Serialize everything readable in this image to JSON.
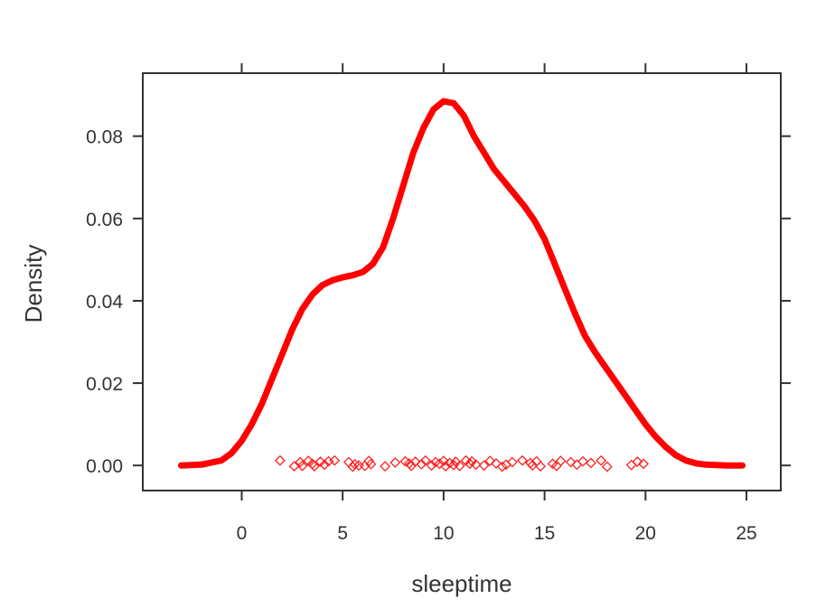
{
  "chart_data": {
    "type": "line",
    "xlabel": "sleeptime",
    "ylabel": "Density",
    "xlim": [
      -4.9,
      26.7
    ],
    "ylim": [
      -0.0061,
      0.0953
    ],
    "xticks": [
      0,
      5,
      10,
      15,
      20,
      25
    ],
    "xtick_labels": [
      "0",
      "5",
      "10",
      "15",
      "20",
      "25"
    ],
    "yticks": [
      0.0,
      0.02,
      0.04,
      0.06,
      0.08
    ],
    "ytick_labels": [
      "0.00",
      "0.02",
      "0.04",
      "0.06",
      "0.08"
    ],
    "colors": {
      "line": "#ff0000",
      "points": "#ff2020",
      "frame": "#333333"
    },
    "series": [
      {
        "style": "density-line",
        "x": [
          -3.0,
          -2.0,
          -1.0,
          -0.5,
          0.0,
          0.5,
          1.0,
          1.5,
          2.0,
          2.5,
          3.0,
          3.5,
          4.0,
          4.5,
          5.0,
          5.5,
          6.0,
          6.5,
          7.0,
          7.5,
          8.0,
          8.5,
          9.0,
          9.5,
          10.0,
          10.5,
          11.0,
          11.5,
          12.0,
          12.5,
          13.0,
          13.5,
          14.0,
          14.5,
          15.0,
          15.5,
          16.0,
          16.5,
          17.0,
          17.5,
          18.0,
          18.5,
          19.0,
          19.5,
          20.0,
          20.5,
          21.0,
          21.5,
          22.0,
          22.5,
          23.0,
          24.0,
          24.8
        ],
        "y": [
          0.0,
          0.0002,
          0.0012,
          0.003,
          0.006,
          0.01,
          0.015,
          0.021,
          0.027,
          0.033,
          0.038,
          0.0415,
          0.0438,
          0.045,
          0.0457,
          0.0462,
          0.047,
          0.049,
          0.053,
          0.06,
          0.068,
          0.076,
          0.082,
          0.0865,
          0.0885,
          0.088,
          0.085,
          0.08,
          0.076,
          0.072,
          0.069,
          0.066,
          0.063,
          0.0595,
          0.055,
          0.049,
          0.043,
          0.037,
          0.0315,
          0.0275,
          0.024,
          0.0205,
          0.017,
          0.0135,
          0.01,
          0.007,
          0.0045,
          0.0025,
          0.0012,
          0.0005,
          0.0002,
          0.0,
          0.0
        ]
      },
      {
        "style": "rug-points",
        "x": [
          1.9,
          2.6,
          2.9,
          3.0,
          3.3,
          3.5,
          3.6,
          3.9,
          4.1,
          4.3,
          4.6,
          5.3,
          5.5,
          5.6,
          5.8,
          6.1,
          6.3,
          6.4,
          7.1,
          7.6,
          8.1,
          8.3,
          8.4,
          8.6,
          8.9,
          9.1,
          9.4,
          9.6,
          9.8,
          10.0,
          10.1,
          10.3,
          10.5,
          10.6,
          10.8,
          11.1,
          11.3,
          11.4,
          11.6,
          12.0,
          12.3,
          12.6,
          12.9,
          13.1,
          13.4,
          13.9,
          14.3,
          14.4,
          14.6,
          14.8,
          15.4,
          15.6,
          15.8,
          16.3,
          16.6,
          16.9,
          17.3,
          17.8,
          18.1,
          19.3,
          19.6,
          19.9
        ],
        "y": [
          0.0012,
          -0.0002,
          0.0008,
          -0.0001,
          0.0011,
          0.0004,
          -0.0002,
          0.0009,
          0.0002,
          0.001,
          0.0012,
          0.0008,
          -0.0003,
          0.0003,
          0.0,
          -0.0001,
          0.0011,
          0.0003,
          -0.0002,
          0.0007,
          0.001,
          0.0005,
          -0.0001,
          0.0009,
          0.0003,
          0.0012,
          0.0,
          0.0008,
          0.0004,
          0.0011,
          -0.0002,
          0.0006,
          0.0001,
          0.0009,
          -0.0001,
          0.0012,
          0.0004,
          0.001,
          0.0002,
          0.0,
          0.0011,
          0.0005,
          -0.0003,
          0.0002,
          0.0008,
          0.0012,
          0.0006,
          0.0,
          0.001,
          -0.0002,
          0.0004,
          -0.0001,
          0.0011,
          0.0008,
          0.0002,
          0.001,
          0.0006,
          0.0012,
          -0.0003,
          0.0001,
          0.0009,
          0.0004
        ]
      }
    ]
  }
}
